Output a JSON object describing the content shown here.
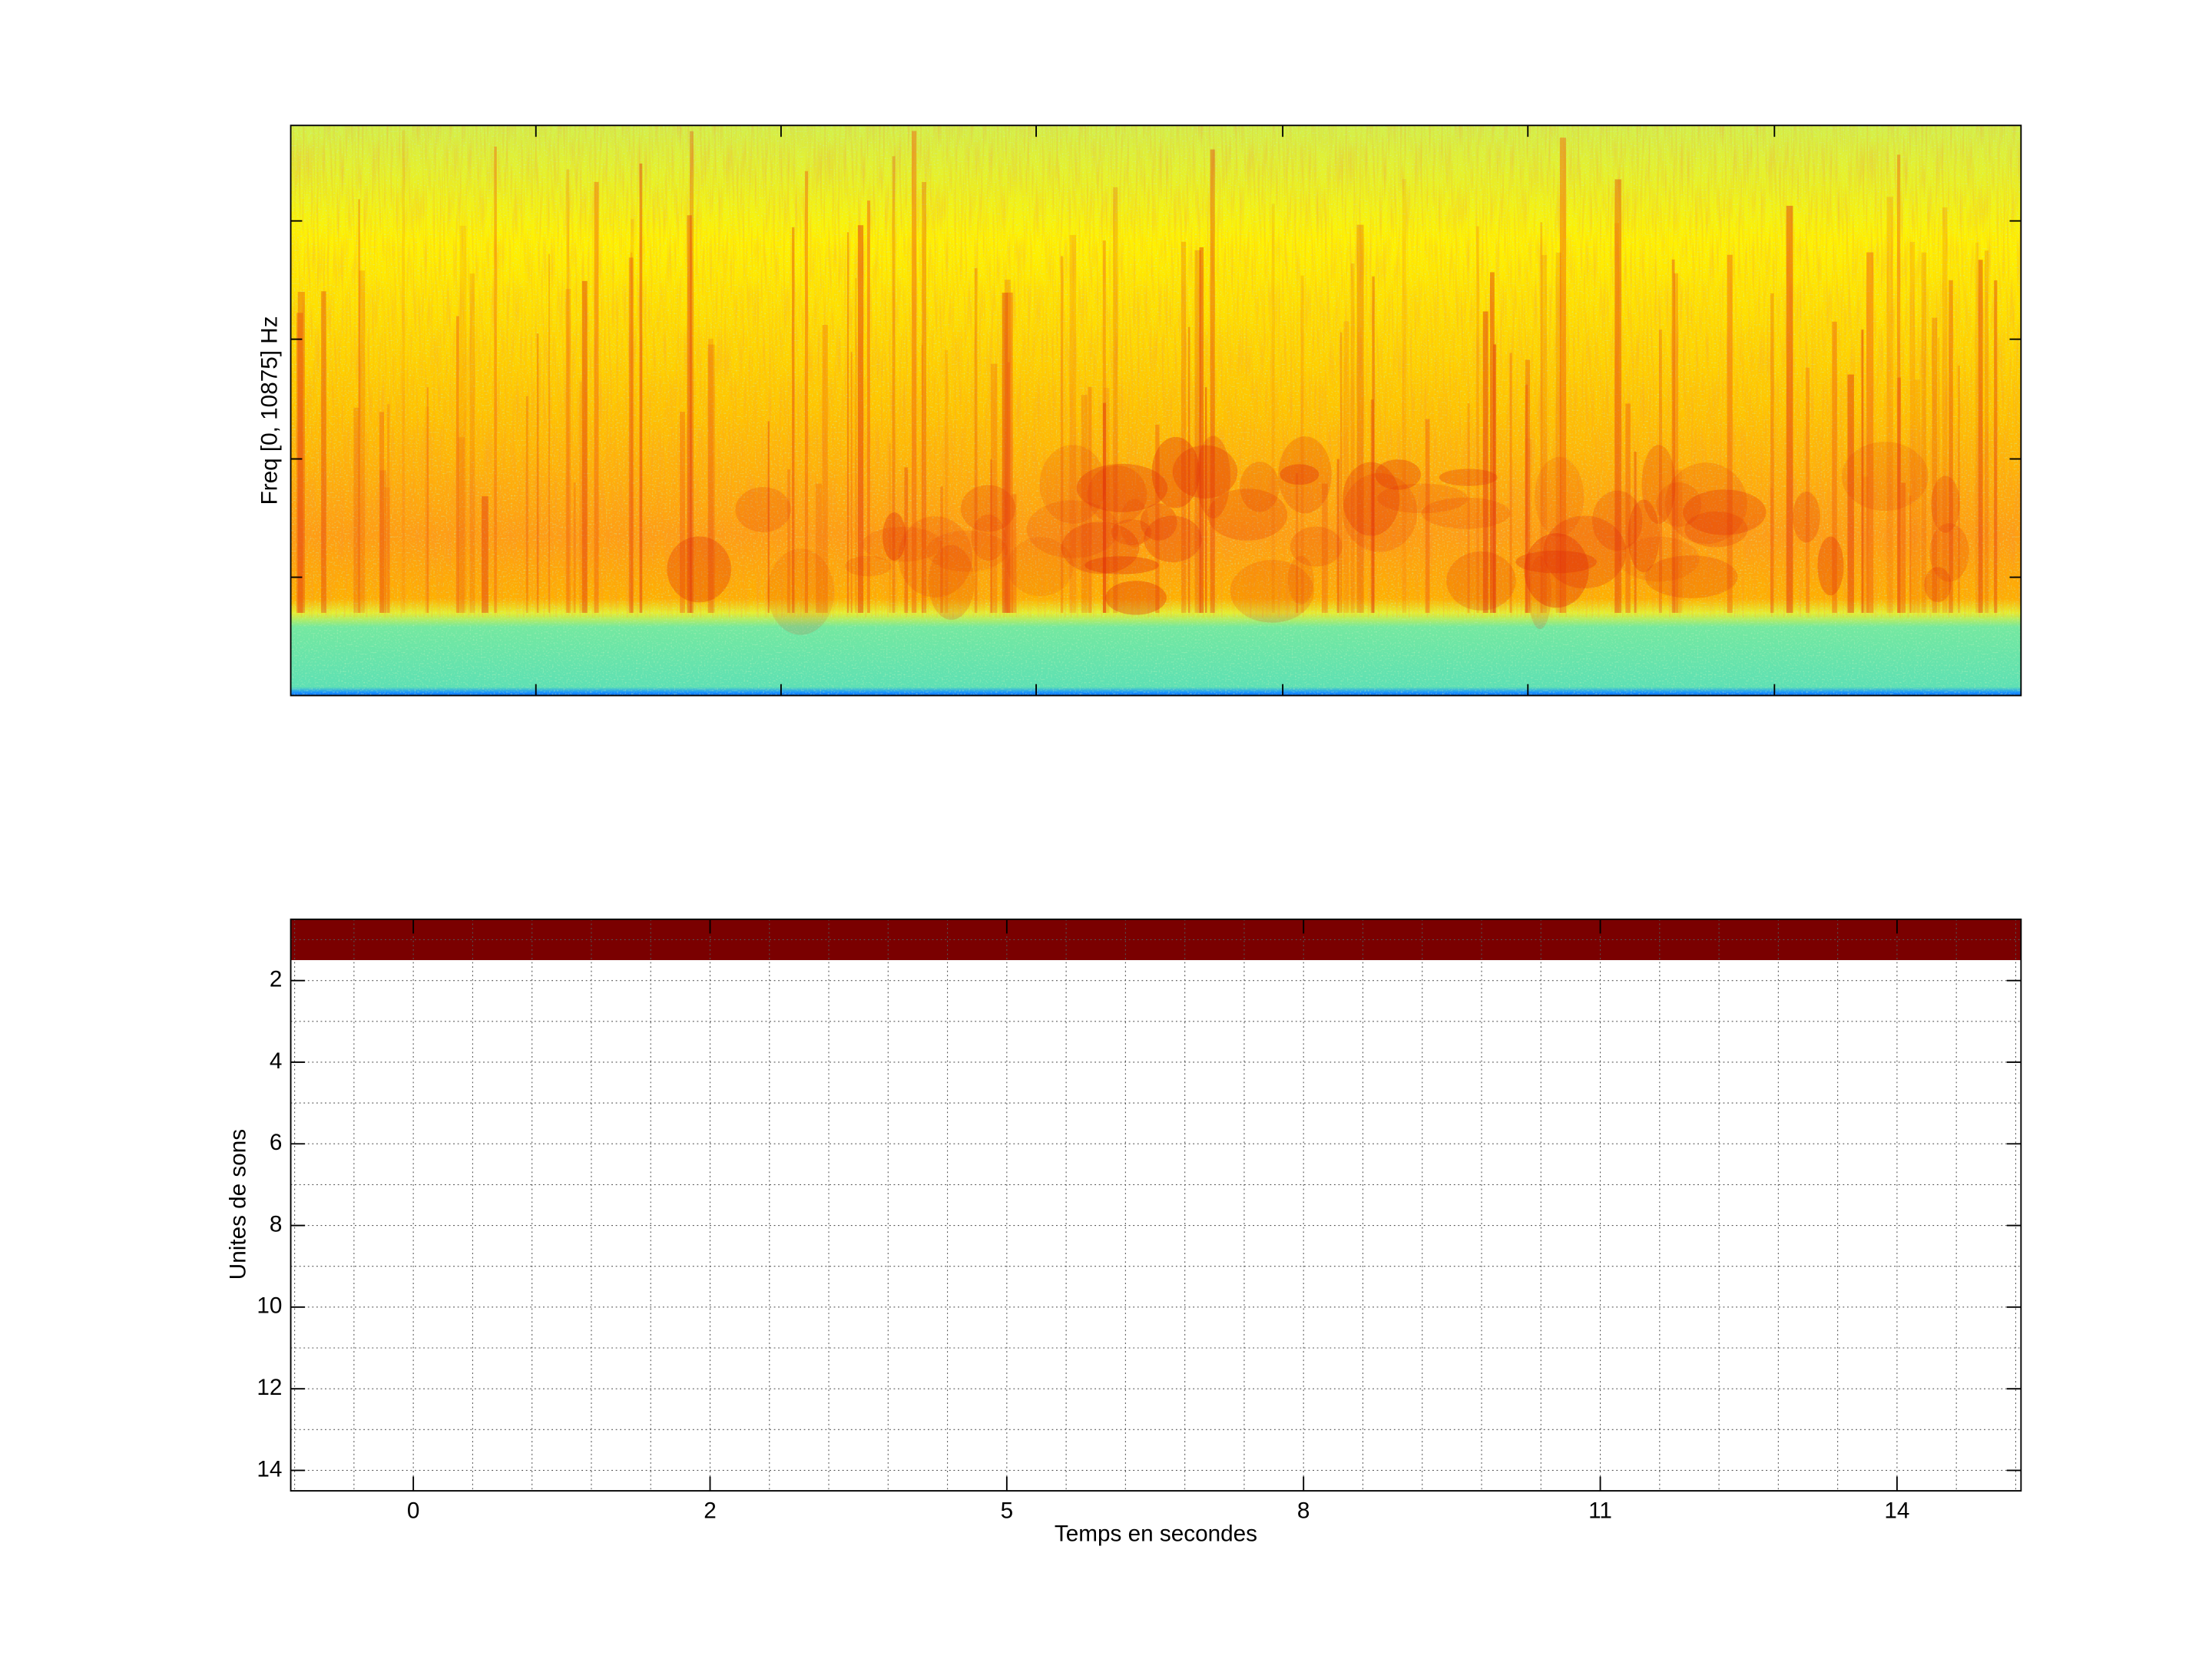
{
  "chart_data": [
    {
      "type": "spectrogram",
      "ylabel": "Freq [0, 10875] Hz"
    },
    {
      "type": "raster",
      "xlabel": "Temps en secondes",
      "ylabel": "Unites de sons",
      "xticks": [
        0,
        2,
        5,
        8,
        11,
        14
      ],
      "ylim": [
        0.5,
        14.5
      ],
      "yticks": [
        2,
        4,
        6,
        8,
        10,
        12,
        14
      ],
      "y_reversed": true,
      "grid": true,
      "rows": [
        1
      ],
      "color": "#7a0000"
    }
  ]
}
